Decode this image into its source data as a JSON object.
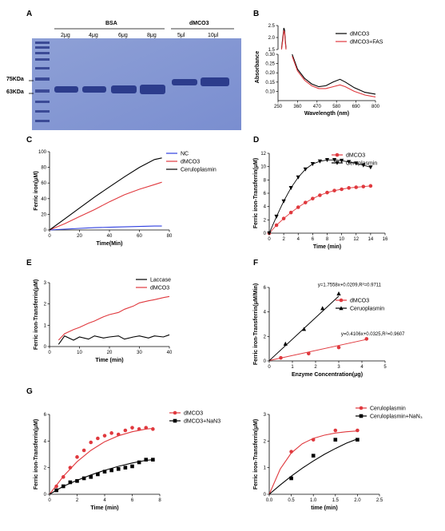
{
  "panels": {
    "A": {
      "letter": "A",
      "group_bsa": "BSA",
      "group_dmco3": "dMCO3",
      "lanes": [
        "2μg",
        "4μg",
        "6μg",
        "8μg",
        "5μl",
        "10μl"
      ],
      "markers": [
        "75KDa",
        "63KDa"
      ]
    },
    "B": {
      "letter": "B"
    },
    "C": {
      "letter": "C"
    },
    "D": {
      "letter": "D"
    },
    "E": {
      "letter": "E"
    },
    "F": {
      "letter": "F"
    },
    "G": {
      "letter": "G"
    }
  },
  "chart_data": [
    {
      "id": "B",
      "type": "line",
      "xlabel": "Wavelength (nm)",
      "ylabel": "Absorbance",
      "xlim": [
        250,
        800
      ],
      "xticks": [
        250,
        360,
        470,
        580,
        690,
        800
      ],
      "ylim_upper": [
        1.5,
        2.5
      ],
      "yticks_upper": [
        "1.5",
        "2.0",
        "2.5"
      ],
      "ylim_lower": [
        0.05,
        0.3
      ],
      "yticks_lower": [
        "0.10",
        "0.15",
        "0.20",
        "0.25",
        "0.30"
      ],
      "legend_position": "top-right",
      "series": [
        {
          "name": "dMCO3",
          "color": "#000000",
          "upper": [
            [
              270,
              1.55
            ],
            [
              278,
              2.05
            ],
            [
              283,
              2.4
            ],
            [
              287,
              2.3
            ],
            [
              291,
              1.9
            ],
            [
              295,
              1.55
            ]
          ],
          "lower": [
            [
              330,
              0.3
            ],
            [
              360,
              0.22
            ],
            [
              400,
              0.17
            ],
            [
              440,
              0.14
            ],
            [
              480,
              0.125
            ],
            [
              520,
              0.13
            ],
            [
              560,
              0.15
            ],
            [
              600,
              0.165
            ],
            [
              630,
              0.15
            ],
            [
              680,
              0.12
            ],
            [
              740,
              0.095
            ],
            [
              800,
              0.085
            ]
          ]
        },
        {
          "name": "dMCO3+FAS",
          "color": "#e0393e",
          "upper": [
            [
              270,
              1.5
            ],
            [
              278,
              1.95
            ],
            [
              283,
              2.3
            ],
            [
              287,
              2.2
            ],
            [
              291,
              1.8
            ],
            [
              295,
              1.5
            ]
          ],
          "lower": [
            [
              330,
              0.29
            ],
            [
              360,
              0.21
            ],
            [
              400,
              0.16
            ],
            [
              440,
              0.13
            ],
            [
              480,
              0.115
            ],
            [
              520,
              0.115
            ],
            [
              560,
              0.125
            ],
            [
              600,
              0.135
            ],
            [
              630,
              0.125
            ],
            [
              680,
              0.1
            ],
            [
              740,
              0.08
            ],
            [
              800,
              0.07
            ]
          ]
        }
      ]
    },
    {
      "id": "C",
      "type": "line",
      "xlabel": "Time(Min)",
      "ylabel": "Ferric iron(μM)",
      "xlim": [
        0,
        80
      ],
      "xticks": [
        0,
        20,
        40,
        60,
        80
      ],
      "ylim": [
        0,
        100
      ],
      "yticks": [
        0,
        20,
        40,
        60,
        80,
        100
      ],
      "legend_position": "right",
      "series": [
        {
          "name": "NC",
          "color": "#2f3fe0",
          "x": [
            0,
            10,
            20,
            30,
            40,
            50,
            60,
            70,
            75
          ],
          "y": [
            0,
            1,
            2,
            3,
            3.5,
            4,
            4.5,
            5,
            5
          ]
        },
        {
          "name": "dMCO3",
          "color": "#e0393e",
          "x": [
            0,
            10,
            20,
            30,
            40,
            50,
            60,
            70,
            75
          ],
          "y": [
            0,
            8,
            17,
            26,
            36,
            45,
            52,
            58,
            61
          ]
        },
        {
          "name": "Ceruloplasmin",
          "color": "#000000",
          "x": [
            0,
            10,
            20,
            30,
            40,
            50,
            60,
            70,
            75
          ],
          "y": [
            0,
            14,
            28,
            42,
            55,
            68,
            80,
            90,
            92
          ]
        }
      ]
    },
    {
      "id": "D",
      "type": "line",
      "xlabel": "Time (min)",
      "ylabel": "Ferric iron-Transferrin(μM)",
      "xlim": [
        0,
        16
      ],
      "xticks": [
        0,
        2,
        4,
        6,
        8,
        10,
        12,
        14,
        16
      ],
      "ylim": [
        0,
        12
      ],
      "yticks": [
        0,
        2,
        4,
        6,
        8,
        10,
        12
      ],
      "legend_position": "top-right",
      "series": [
        {
          "name": "dMCO3",
          "color": "#e0393e",
          "marker": "circle",
          "x": [
            0,
            1,
            2,
            3,
            4,
            5,
            6,
            7,
            8,
            9,
            10,
            11,
            12,
            13,
            14
          ],
          "y": [
            0,
            1.2,
            2.2,
            3.1,
            3.9,
            4.6,
            5.2,
            5.7,
            6.1,
            6.4,
            6.6,
            6.8,
            6.9,
            7,
            7.1
          ]
        },
        {
          "name": "Ceruplasmin",
          "color": "#000000",
          "marker": "triangle-down",
          "x": [
            0,
            1,
            2,
            3,
            4,
            5,
            6,
            7,
            8,
            9,
            10,
            11,
            12,
            13,
            14
          ],
          "y": [
            0,
            2.5,
            4.8,
            6.8,
            8.4,
            9.6,
            10.4,
            10.8,
            11,
            11,
            10.9,
            10.7,
            10.5,
            10.2,
            9.9
          ]
        }
      ]
    },
    {
      "id": "E",
      "type": "line",
      "xlabel": "Time (min)",
      "ylabel": "Ferric iron-Transferrin(μM)",
      "xlim": [
        0,
        40
      ],
      "xticks": [
        0,
        10,
        20,
        30,
        40
      ],
      "ylim": [
        0,
        3
      ],
      "yticks": [
        0,
        1,
        2,
        3
      ],
      "legend_position": "top-right",
      "series": [
        {
          "name": "Laccase",
          "color": "#000000",
          "x": [
            3,
            5,
            8,
            10,
            13,
            15,
            18,
            20,
            23,
            25,
            28,
            30,
            33,
            35,
            38,
            40
          ],
          "y": [
            0.1,
            0.5,
            0.3,
            0.45,
            0.35,
            0.5,
            0.4,
            0.45,
            0.5,
            0.35,
            0.45,
            0.5,
            0.4,
            0.5,
            0.45,
            0.55
          ]
        },
        {
          "name": "dMCO3",
          "color": "#e0393e",
          "x": [
            3,
            5,
            8,
            10,
            13,
            15,
            18,
            20,
            23,
            25,
            28,
            30,
            33,
            35,
            38,
            40
          ],
          "y": [
            0.3,
            0.6,
            0.8,
            0.9,
            1.1,
            1.2,
            1.4,
            1.5,
            1.6,
            1.75,
            1.9,
            2.05,
            2.15,
            2.2,
            2.3,
            2.35
          ]
        }
      ]
    },
    {
      "id": "F",
      "type": "scatter",
      "xlabel": "Enzyme Concentration(μg)",
      "ylabel": "Ferric iron-Transferrin(μM/Min)",
      "xlim": [
        0,
        5
      ],
      "xticks": [
        0,
        1,
        2,
        3,
        4,
        5
      ],
      "ylim": [
        0,
        6
      ],
      "yticks": [
        0,
        2,
        4,
        6
      ],
      "legend_position": "right",
      "annotations": [
        "y=1.7558x+0.0209,R²=0.9711",
        "y=0.4106x+0.0325,R²=0.9607"
      ],
      "series": [
        {
          "name": "dMCO3",
          "color": "#e0393e",
          "marker": "circle",
          "x": [
            0.5,
            1.7,
            3.0,
            4.2
          ],
          "y": [
            0.25,
            0.6,
            1.1,
            1.8
          ],
          "fit": {
            "slope": 0.4106,
            "intercept": 0.0325,
            "x_range": [
              0,
              4.2
            ]
          }
        },
        {
          "name": "Ceruoplasmin",
          "color": "#000000",
          "marker": "triangle",
          "x": [
            0.7,
            1.5,
            2.3,
            3.0
          ],
          "y": [
            1.4,
            2.6,
            4.3,
            5.5
          ],
          "fit": {
            "slope": 1.7558,
            "intercept": 0.0209,
            "x_range": [
              0,
              3.0
            ]
          }
        }
      ]
    },
    {
      "id": "G1",
      "type": "scatter",
      "xlabel": "Time (min)",
      "ylabel": "Ferric iron-Transferrin(μM)",
      "xlim": [
        0,
        8
      ],
      "xticks": [
        0,
        2,
        4,
        6,
        8
      ],
      "ylim": [
        0,
        6
      ],
      "yticks": [
        0,
        2,
        4,
        6
      ],
      "legend_position": "top-right",
      "series": [
        {
          "name": "dMCO3",
          "color": "#e0393e",
          "marker": "circle",
          "x": [
            0.5,
            1,
            1.5,
            2,
            2.5,
            3,
            3.5,
            4,
            4.5,
            5,
            5.5,
            6,
            6.5,
            7,
            7.5
          ],
          "y": [
            0.6,
            1.3,
            2.0,
            2.8,
            3.3,
            3.9,
            4.2,
            4.4,
            4.6,
            4.5,
            4.8,
            5.0,
            4.9,
            5.0,
            4.9
          ],
          "fit_curve": [
            [
              0,
              0
            ],
            [
              1,
              1.35
            ],
            [
              2,
              2.45
            ],
            [
              3,
              3.3
            ],
            [
              4,
              3.95
            ],
            [
              5,
              4.4
            ],
            [
              6,
              4.7
            ],
            [
              7,
              4.9
            ],
            [
              7.5,
              4.95
            ]
          ]
        },
        {
          "name": "dMCO3+NaN3",
          "color": "#000000",
          "marker": "square",
          "x": [
            0.5,
            1,
            1.5,
            2,
            2.5,
            3,
            3.5,
            4,
            4.5,
            5,
            5.5,
            6,
            6.5,
            7,
            7.5
          ],
          "y": [
            0.3,
            0.6,
            0.9,
            1.0,
            1.2,
            1.3,
            1.5,
            1.7,
            1.8,
            1.9,
            2.0,
            2.1,
            2.4,
            2.6,
            2.6
          ],
          "fit_curve": [
            [
              0,
              0
            ],
            [
              1,
              0.6
            ],
            [
              2,
              1.05
            ],
            [
              3,
              1.45
            ],
            [
              4,
              1.8
            ],
            [
              5,
              2.1
            ],
            [
              6,
              2.35
            ],
            [
              7,
              2.55
            ],
            [
              7.5,
              2.6
            ]
          ]
        }
      ]
    },
    {
      "id": "G2",
      "type": "scatter",
      "xlabel": "time (min)",
      "ylabel": "Ferric iron-Transferrin(μM)",
      "xlim": [
        0,
        2.5
      ],
      "xticks": [
        "0.0",
        "0.5",
        "1.0",
        "1.5",
        "2.0",
        "2.5"
      ],
      "ylim": [
        0,
        3
      ],
      "yticks": [
        0,
        1,
        2,
        3
      ],
      "legend_position": "top-right",
      "series": [
        {
          "name": "Ceruloplasmin",
          "color": "#e0393e",
          "marker": "circle",
          "x": [
            0.5,
            1.0,
            1.5,
            2.0
          ],
          "y": [
            1.6,
            2.05,
            2.4,
            2.4
          ],
          "fit_curve": [
            [
              0,
              0
            ],
            [
              0.25,
              0.95
            ],
            [
              0.5,
              1.55
            ],
            [
              0.75,
              1.9
            ],
            [
              1,
              2.1
            ],
            [
              1.25,
              2.22
            ],
            [
              1.5,
              2.3
            ],
            [
              1.75,
              2.35
            ],
            [
              2,
              2.38
            ]
          ]
        },
        {
          "name": "Ceruloplasmin+NaN₃",
          "color": "#000000",
          "marker": "square",
          "x": [
            0.5,
            1.0,
            1.5,
            2.0
          ],
          "y": [
            0.6,
            1.45,
            2.05,
            2.05
          ],
          "fit_curve": [
            [
              0,
              0
            ],
            [
              0.25,
              0.35
            ],
            [
              0.5,
              0.68
            ],
            [
              0.75,
              0.98
            ],
            [
              1,
              1.25
            ],
            [
              1.25,
              1.5
            ],
            [
              1.5,
              1.72
            ],
            [
              1.75,
              1.92
            ],
            [
              2,
              2.08
            ]
          ]
        }
      ]
    }
  ]
}
